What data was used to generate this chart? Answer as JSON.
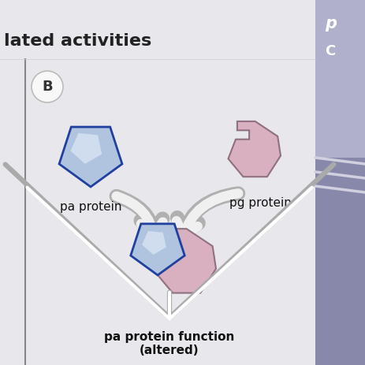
{
  "bg_color": "#e8e8ec",
  "right_panel_color": "#8888aa",
  "right_panel_light": "#b0b0cc",
  "title_text": "lated activities",
  "title_color": "#222222",
  "title_fontsize": 16,
  "label_B": "B",
  "pa_protein_label": "pa protein",
  "pg_protein_label": "pg protein",
  "bottom_label_line1": "pa protein function",
  "bottom_label_line2": "(altered)",
  "label_fontsize": 11,
  "label_color": "#111111",
  "pentagon_blue_fill_top": "#b0c4e0",
  "pentagon_blue_fill_bottom": "#7090c0",
  "pentagon_blue_edge": "#2040a0",
  "fragment_pink_fill": "#d8b0c0",
  "fragment_pink_edge": "#907080",
  "arrow_white": "#f0f0f0",
  "arrow_gray": "#b0b0b0",
  "vertical_line_color": "#888888",
  "B_circle_color": "#f8f8f8",
  "B_text_color": "#333333",
  "down_arrow_white": "#ffffff",
  "down_arrow_outline": "#aaaaaa"
}
